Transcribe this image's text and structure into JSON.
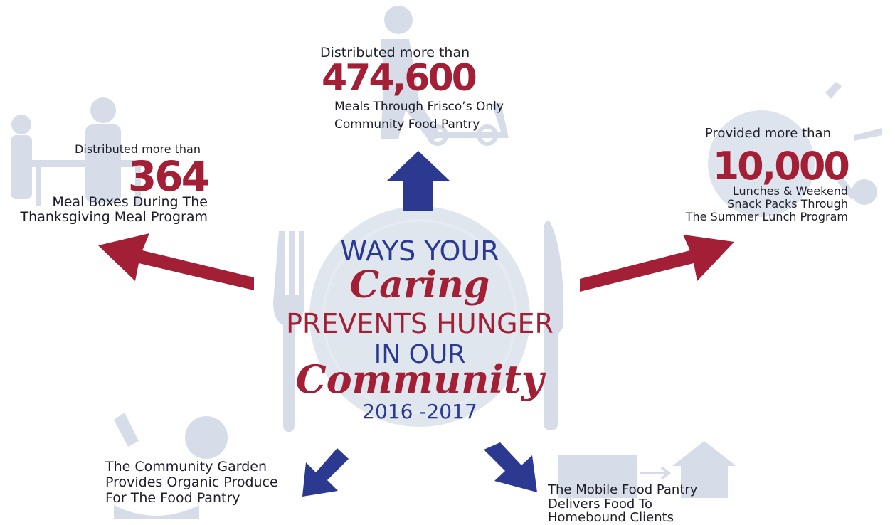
{
  "center": {
    "lines": [
      "WAYS YOUR",
      "Caring",
      "PREVENTS HUNGER",
      "IN OUR",
      "Community",
      "2016 -2017"
    ]
  },
  "stats": [
    {
      "intro": "Distributed more than",
      "number": "474,600",
      "lines": [
        "Meals Through Frisco’s Only",
        "Community Food Pantry"
      ]
    },
    {
      "intro": "Distributed more than",
      "number": "364",
      "lines": [
        "Meal Boxes During The",
        "Thanksgiving Meal Program"
      ]
    },
    {
      "intro": "Provided more than",
      "number": "10,000",
      "lines": [
        "Lunches & Weekend",
        "Snack Packs Through",
        "The Summer Lunch Program"
      ]
    }
  ],
  "programs": [
    {
      "lines": [
        "The Community Garden",
        "Provides Organic Produce",
        "For The Food Pantry"
      ]
    },
    {
      "lines": [
        "The Mobile Food Pantry",
        "Delivers Food To",
        "Homebound Clients"
      ]
    }
  ]
}
